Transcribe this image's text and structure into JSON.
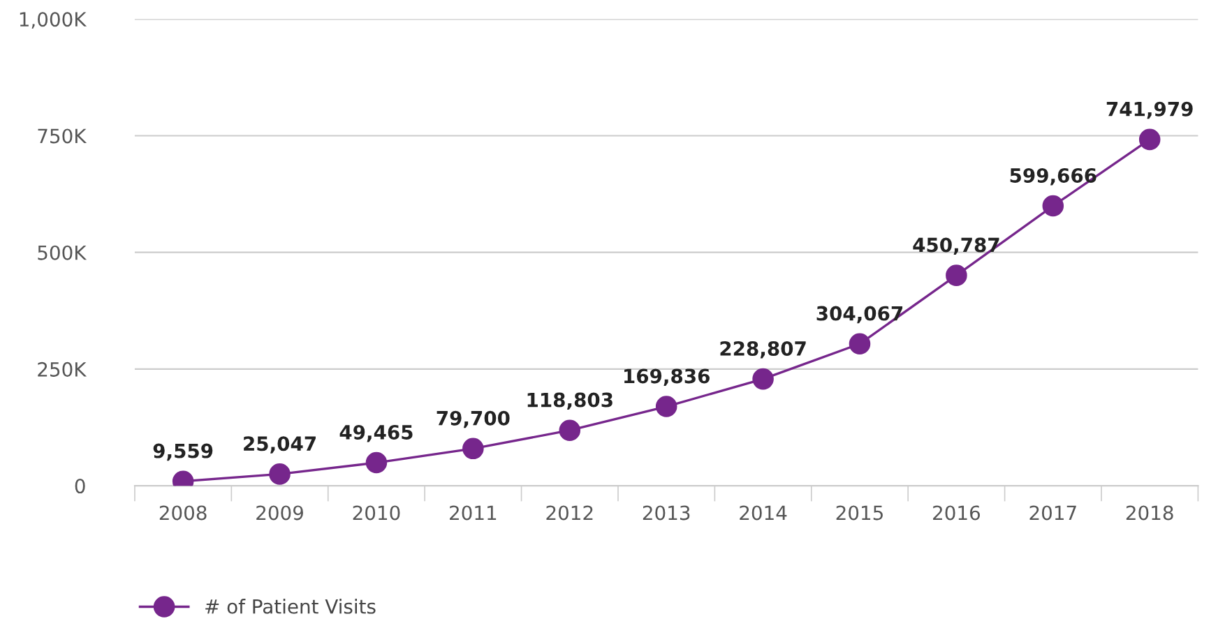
{
  "chart_data": {
    "type": "line",
    "categories": [
      "2008",
      "2009",
      "2010",
      "2011",
      "2012",
      "2013",
      "2014",
      "2015",
      "2016",
      "2017",
      "2018"
    ],
    "series": [
      {
        "name": "# of Patient Visits",
        "color": "#76268c",
        "values": [
          9559,
          25047,
          49465,
          79700,
          118803,
          169836,
          228807,
          304067,
          450787,
          599666,
          741979
        ],
        "value_labels": [
          "9,559",
          "25,047",
          "49,465",
          "79,700",
          "118,803",
          "169,836",
          "228,807",
          "304,067",
          "450,787",
          "599,666",
          "741,979"
        ]
      }
    ],
    "ylim": [
      0,
      1000000
    ],
    "yticks": [
      0,
      {
        "value": 250000,
        "label": "250K"
      },
      {
        "value": 500000,
        "label": "500K"
      },
      {
        "value": 750000,
        "label": "750K"
      },
      {
        "value": 1000000,
        "label": "1,000K"
      }
    ],
    "grid": "y",
    "legend": "bottom left",
    "marker": "circle",
    "line_style": "solid"
  }
}
